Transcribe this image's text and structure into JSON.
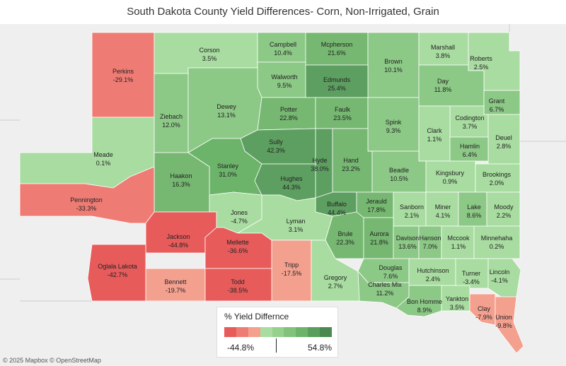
{
  "title": "South Dakota County Yield Differences- Corn, Non-Irrigated, Grain",
  "legend": {
    "title": "% Yield Differnce",
    "min_label": "-44.8%",
    "max_label": "54.8%",
    "colors": [
      "#e85b5b",
      "#ef7c74",
      "#f4a08f",
      "#a8dca0",
      "#95d18d",
      "#82c27c",
      "#6db46b",
      "#599e5d",
      "#4a8a51"
    ]
  },
  "attribution": "© 2025 Mapbox © OpenStreetMap",
  "colors": {
    "strong_neg": "#e85b5b",
    "neg": "#ef7c74",
    "mild_neg": "#f4a08f",
    "light_pos": "#a8dca0",
    "pos": "#8cc886",
    "mid_pos": "#76b871",
    "strong_pos": "#5d9f60",
    "max_pos": "#4d8c55"
  },
  "counties": [
    {
      "name": "Perkins",
      "value": "-29.1%"
    },
    {
      "name": "Corson",
      "value": "3.5%"
    },
    {
      "name": "Campbell",
      "value": "10.4%"
    },
    {
      "name": "Mcpherson",
      "value": "21.6%"
    },
    {
      "name": "Brown",
      "value": "10.1%"
    },
    {
      "name": "Marshall",
      "value": "3.8%"
    },
    {
      "name": "Roberts",
      "value": "2.5%"
    },
    {
      "name": "Walworth",
      "value": "9.5%"
    },
    {
      "name": "Edmunds",
      "value": "25.4%"
    },
    {
      "name": "Day",
      "value": "11.8%"
    },
    {
      "name": "Grant",
      "value": "6.7%"
    },
    {
      "name": "Ziebach",
      "value": "12.0%"
    },
    {
      "name": "Dewey",
      "value": "13.1%"
    },
    {
      "name": "Potter",
      "value": "22.8%"
    },
    {
      "name": "Faulk",
      "value": "23.5%"
    },
    {
      "name": "Spink",
      "value": "9.3%"
    },
    {
      "name": "Codington",
      "value": "3.7%"
    },
    {
      "name": "Clark",
      "value": "1.1%"
    },
    {
      "name": "Deuel",
      "value": "2.8%"
    },
    {
      "name": "Hamlin",
      "value": "6.4%"
    },
    {
      "name": "Meade",
      "value": "0.1%"
    },
    {
      "name": "Sully",
      "value": "42.3%"
    },
    {
      "name": "Stanley",
      "value": "31.0%"
    },
    {
      "name": "Hyde",
      "value": "38.0%"
    },
    {
      "name": "Hand",
      "value": "23.2%"
    },
    {
      "name": "Beadle",
      "value": "10.5%"
    },
    {
      "name": "Kingsbury",
      "value": "0.9%"
    },
    {
      "name": "Brookings",
      "value": "2.0%"
    },
    {
      "name": "Haakon",
      "value": "16.3%"
    },
    {
      "name": "Hughes",
      "value": "44.3%"
    },
    {
      "name": "Pennington",
      "value": "-33.3%"
    },
    {
      "name": "Buffalo",
      "value": "44.4%"
    },
    {
      "name": "Jerauld",
      "value": "17.8%"
    },
    {
      "name": "Sanborn",
      "value": "2.1%"
    },
    {
      "name": "Miner",
      "value": "4.1%"
    },
    {
      "name": "Lake",
      "value": "8.6%"
    },
    {
      "name": "Moody",
      "value": "2.2%"
    },
    {
      "name": "Jones",
      "value": "-4.7%"
    },
    {
      "name": "Lyman",
      "value": "3.1%"
    },
    {
      "name": "Jackson",
      "value": "-44.8%"
    },
    {
      "name": "Mellette",
      "value": "-36.6%"
    },
    {
      "name": "Brule",
      "value": "22.3%"
    },
    {
      "name": "Aurora",
      "value": "21.8%"
    },
    {
      "name": "Davison",
      "value": "13.6%"
    },
    {
      "name": "Hanson",
      "value": "7.0%"
    },
    {
      "name": "Mccook",
      "value": "1.1%"
    },
    {
      "name": "Minnehaha",
      "value": "0.2%"
    },
    {
      "name": "Oglala Lakota",
      "value": "-42.7%"
    },
    {
      "name": "Tripp",
      "value": "-17.5%"
    },
    {
      "name": "Douglas",
      "value": "7.6%"
    },
    {
      "name": "Hutchinson",
      "value": "2.4%"
    },
    {
      "name": "Turner",
      "value": "-3.4%"
    },
    {
      "name": "Lincoln",
      "value": "-4.1%"
    },
    {
      "name": "Bennett",
      "value": "-19.7%"
    },
    {
      "name": "Todd",
      "value": "-38.5%"
    },
    {
      "name": "Gregory",
      "value": "2.7%"
    },
    {
      "name": "Charles Mix",
      "value": "11.2%"
    },
    {
      "name": "Bon Homme",
      "value": "8.9%"
    },
    {
      "name": "Yankton",
      "value": "3.5%"
    },
    {
      "name": "Clay",
      "value": "-7.9%"
    },
    {
      "name": "Union",
      "value": "-9.8%"
    }
  ]
}
